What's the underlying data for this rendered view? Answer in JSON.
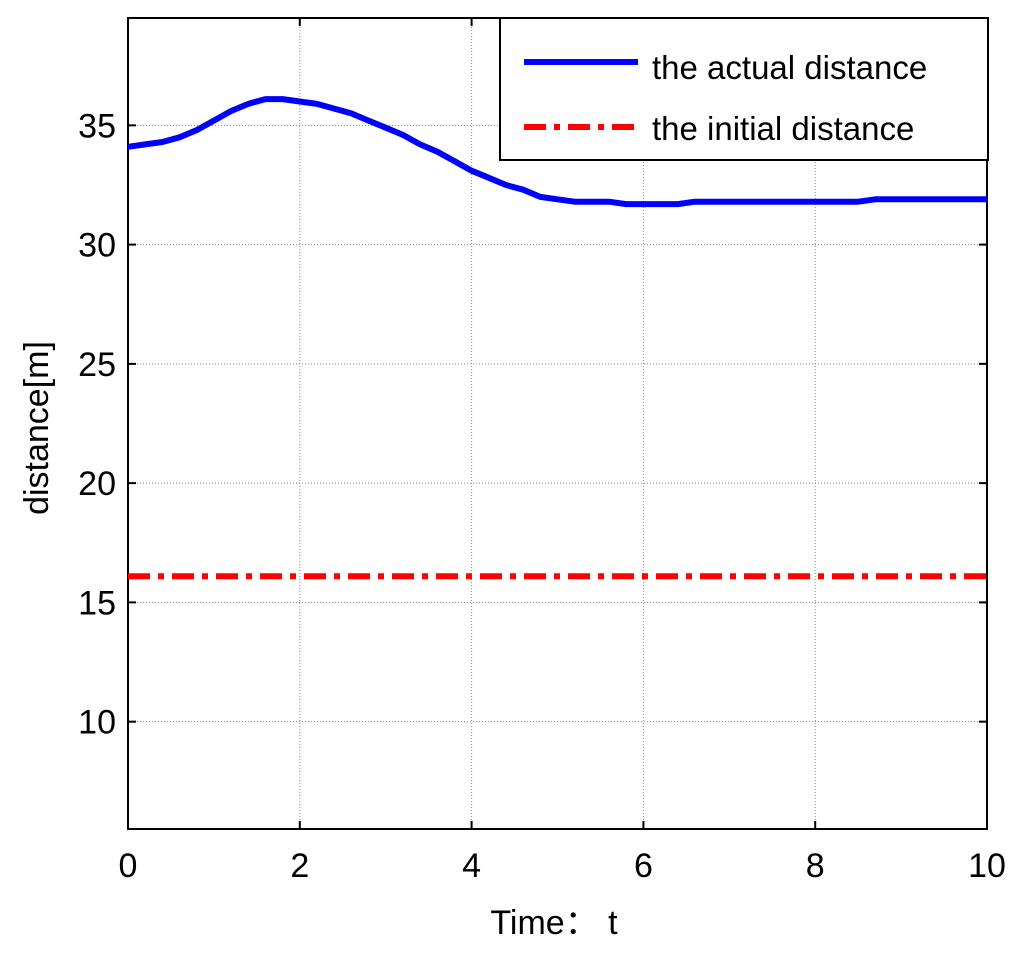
{
  "chart_data": {
    "type": "line",
    "title": "",
    "xlabel": "Time： t",
    "ylabel": "distance[m]",
    "xlim": [
      0,
      10
    ],
    "ylim": [
      5.5,
      39.5
    ],
    "xticks": [
      0,
      2,
      4,
      6,
      8,
      10
    ],
    "yticks": [
      10,
      15,
      20,
      25,
      30,
      35
    ],
    "grid": true,
    "legend_position": "top-right",
    "series": [
      {
        "name": "the actual distance",
        "color": "#0000ff",
        "style": "solid",
        "x": [
          0,
          0.2,
          0.4,
          0.6,
          0.8,
          1.0,
          1.2,
          1.4,
          1.6,
          1.8,
          2.0,
          2.2,
          2.4,
          2.6,
          2.8,
          3.0,
          3.2,
          3.4,
          3.6,
          3.8,
          4.0,
          4.2,
          4.4,
          4.6,
          4.8,
          5.0,
          5.2,
          5.4,
          5.6,
          5.8,
          6.0,
          6.2,
          6.4,
          6.6,
          7.0,
          7.5,
          8.0,
          8.5,
          8.7,
          9.0,
          9.5,
          10.0
        ],
        "y": [
          34.1,
          34.2,
          34.3,
          34.5,
          34.8,
          35.2,
          35.6,
          35.9,
          36.1,
          36.1,
          36.0,
          35.9,
          35.7,
          35.5,
          35.2,
          34.9,
          34.6,
          34.2,
          33.9,
          33.5,
          33.1,
          32.8,
          32.5,
          32.3,
          32.0,
          31.9,
          31.8,
          31.8,
          31.8,
          31.7,
          31.7,
          31.7,
          31.7,
          31.8,
          31.8,
          31.8,
          31.8,
          31.8,
          31.9,
          31.9,
          31.9,
          31.9
        ]
      },
      {
        "name": "the initial distance",
        "color": "#ff0000",
        "style": "dash-dot",
        "x": [
          0,
          10
        ],
        "y": [
          16.1,
          16.1
        ]
      }
    ]
  }
}
